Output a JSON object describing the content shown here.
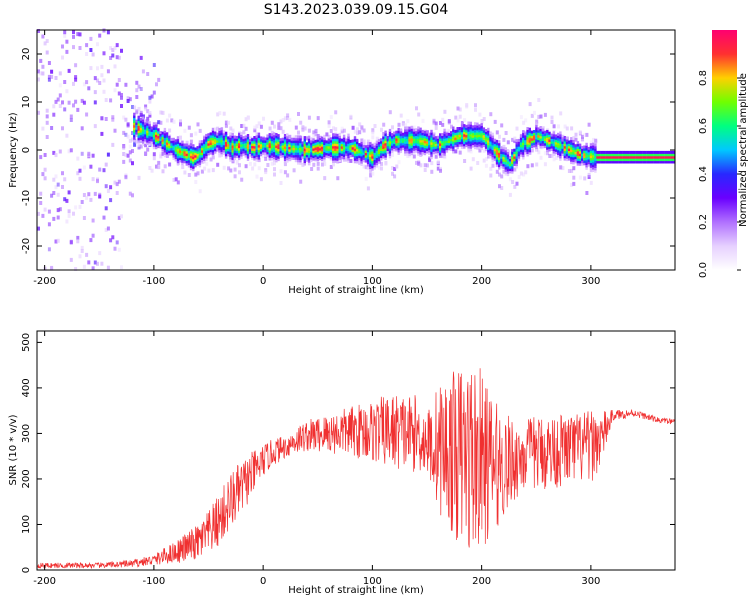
{
  "title": "S143.2023.039.09.15.G04",
  "colors": {
    "snr_line": "#f03030",
    "colormap": [
      "#ffffff",
      "#e6d0ff",
      "#b070ff",
      "#6a00ff",
      "#2828ff",
      "#00c8ff",
      "#00ff80",
      "#70ff00",
      "#ffd000",
      "#ff3030",
      "#ff0070"
    ]
  },
  "chart_data": [
    {
      "type": "heatmap",
      "title": "S143.2023.039.09.15.G04",
      "xlabel": "Height of straight line (km)",
      "ylabel": "Frequency (Hz)",
      "xlim": [
        -207,
        377
      ],
      "ylim": [
        -25,
        25
      ],
      "x_ticks": [
        -200,
        -100,
        0,
        100,
        200,
        300
      ],
      "y_ticks": [
        -20,
        -10,
        0,
        10,
        20
      ],
      "colorbar": {
        "label": "Normalized spectral amplitude",
        "range": [
          0,
          1
        ],
        "ticks": [
          "0.0",
          "0.2",
          "0.4",
          "0.6",
          "0.8"
        ]
      },
      "ridge": {
        "x": [
          -120,
          -100,
          -80,
          -65,
          -60,
          -50,
          -40,
          -30,
          -20,
          -10,
          0,
          20,
          40,
          60,
          80,
          95,
          100,
          110,
          120,
          140,
          160,
          180,
          200,
          215,
          225,
          235,
          250,
          270,
          290,
          305,
          340,
          377
        ],
        "freq": [
          5,
          3,
          0,
          -1.5,
          -1,
          1.5,
          2,
          0.5,
          1,
          0.5,
          1,
          0.5,
          0,
          0.5,
          0.5,
          -1,
          -1.5,
          1,
          2,
          2,
          1,
          3,
          3,
          -1,
          -3,
          1,
          3,
          1,
          -1,
          -1.5,
          -1.5,
          -1.5
        ]
      }
    },
    {
      "type": "line",
      "xlabel": "Height of straight line (km)",
      "ylabel": "SNR (10 * v/v)",
      "xlim": [
        -207,
        377
      ],
      "ylim": [
        0,
        525
      ],
      "x_ticks": [
        -200,
        -100,
        0,
        100,
        200,
        300
      ],
      "y_ticks": [
        0,
        100,
        200,
        300,
        400,
        500
      ],
      "series": [
        {
          "x": [
            -207,
            -180,
            -150,
            -120,
            -100,
            -80,
            -60,
            -50,
            -40,
            -30,
            -20,
            -10,
            0,
            10,
            20,
            30,
            40,
            60,
            80,
            100,
            120,
            140,
            150,
            160,
            170,
            180,
            190,
            200,
            210,
            220,
            230,
            240,
            260,
            280,
            300,
            310,
            320,
            340,
            360,
            377
          ],
          "mean": [
            10,
            10,
            10,
            14,
            22,
            40,
            60,
            80,
            110,
            150,
            180,
            210,
            240,
            260,
            270,
            285,
            295,
            300,
            305,
            305,
            305,
            300,
            280,
            270,
            260,
            250,
            250,
            240,
            230,
            230,
            240,
            255,
            260,
            265,
            270,
            290,
            340,
            345,
            330,
            325
          ],
          "amplitude": [
            6,
            6,
            6,
            8,
            12,
            25,
            40,
            50,
            60,
            65,
            60,
            50,
            35,
            30,
            25,
            30,
            35,
            45,
            55,
            70,
            85,
            85,
            70,
            140,
            170,
            200,
            220,
            200,
            150,
            120,
            90,
            80,
            85,
            80,
            80,
            60,
            12,
            8,
            6,
            6
          ]
        }
      ]
    }
  ]
}
